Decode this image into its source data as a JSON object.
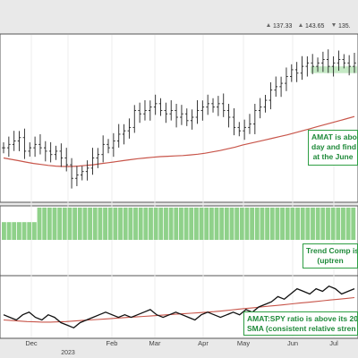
{
  "readouts": [
    {
      "icon": "up-arrow-icon",
      "value": "137.33"
    },
    {
      "icon": "up-arrow-icon",
      "value": "143.65"
    },
    {
      "icon": "down-arrow-icon",
      "value": "135."
    }
  ],
  "x_axis": {
    "months": [
      "Dec",
      "2023",
      "Feb",
      "Mar",
      "Apr",
      "May",
      "Jun",
      "Jul"
    ],
    "year": "2023"
  },
  "annotations": {
    "price_note": [
      "AMAT is abo",
      "day and find",
      "at the June"
    ],
    "trend_note": [
      "Trend Comp is",
      "(uptren"
    ],
    "ratio_note": [
      "AMAT:SPY ratio is above its 20",
      "SMA (consistent relative stren"
    ]
  },
  "colors": {
    "price_bars": "#222222",
    "sma": "#c8554a",
    "trend_bars": "#8fd18a",
    "support_band": "#bfe7bf",
    "ratio_line": "#111111",
    "annotation": "#2f9e44",
    "panel_bg": "#ffffff",
    "page_bg": "#e9e9e9"
  },
  "chart_data": [
    {
      "type": "ohlc",
      "title": "",
      "series": [
        {
          "kind": "price",
          "close": [
            115,
            116,
            117,
            118,
            114,
            115,
            116,
            115,
            114,
            113,
            114,
            112,
            110,
            106,
            107,
            108,
            109,
            112,
            113,
            116,
            115,
            117,
            119,
            120,
            121,
            126,
            125,
            126,
            127,
            128,
            126,
            125,
            126,
            124,
            125,
            123,
            124,
            126,
            127,
            128,
            127,
            128,
            126,
            124,
            121,
            120,
            121,
            122,
            126,
            127,
            129,
            132,
            133,
            134,
            136,
            138,
            137,
            139,
            140,
            139,
            140,
            141,
            139,
            140,
            141,
            140,
            139,
            140
          ]
        },
        {
          "kind": "sma",
          "values": [
            112,
            111.6,
            111.2,
            110.8,
            110.4,
            110.1,
            109.8,
            109.6,
            109.5,
            109.5,
            109.6,
            109.8,
            110,
            110.3,
            110.6,
            110.9,
            111.2,
            111.5,
            111.8,
            112,
            112.2,
            112.4,
            112.5,
            112.6,
            112.7,
            112.9,
            113.1,
            113.4,
            113.8,
            114.2,
            114.7,
            115.2,
            115.8,
            116.3,
            116.8,
            117.3,
            117.8,
            118.3,
            118.8,
            119.4,
            120,
            120.6,
            121.2,
            121.8,
            122.4,
            123,
            123.6,
            124.2
          ]
        }
      ],
      "support_band": [
        137,
        139
      ]
    },
    {
      "type": "bar",
      "title": "",
      "series": [
        {
          "name": "",
          "values": [
            1,
            1,
            1,
            1,
            1,
            1,
            1,
            1,
            1,
            1,
            1,
            1,
            1,
            1,
            1,
            1,
            1,
            1,
            1,
            1,
            1,
            1,
            1,
            1,
            1,
            1,
            1,
            1,
            1,
            1,
            1,
            1,
            1,
            1,
            1,
            1,
            1,
            1,
            1,
            1,
            1,
            1,
            1,
            1,
            1,
            1,
            1,
            1,
            1,
            1,
            1,
            1,
            1,
            1,
            1,
            1,
            1,
            1,
            1,
            1,
            1,
            1,
            1,
            1,
            1,
            1,
            1,
            1,
            1,
            1
          ]
        }
      ],
      "values_early_level": 0.55
    },
    {
      "type": "line",
      "title": "",
      "series": [
        {
          "kind": "ratio",
          "values": [
            0.86,
            0.85,
            0.84,
            0.86,
            0.87,
            0.85,
            0.84,
            0.86,
            0.85,
            0.83,
            0.82,
            0.81,
            0.83,
            0.84,
            0.85,
            0.86,
            0.87,
            0.86,
            0.85,
            0.86,
            0.85,
            0.86,
            0.87,
            0.88,
            0.86,
            0.85,
            0.86,
            0.87,
            0.86,
            0.85,
            0.84,
            0.86,
            0.87,
            0.86,
            0.85,
            0.86,
            0.87,
            0.86,
            0.88,
            0.87,
            0.89,
            0.9,
            0.91,
            0.93,
            0.92,
            0.94,
            0.96,
            0.95,
            0.94,
            0.96,
            0.95,
            0.97,
            0.96,
            0.94,
            0.95,
            0.96
          ]
        },
        {
          "kind": "sma",
          "values": [
            0.84,
            0.838,
            0.836,
            0.834,
            0.833,
            0.832,
            0.832,
            0.833,
            0.834,
            0.836,
            0.838,
            0.84,
            0.842,
            0.844,
            0.846,
            0.848,
            0.85,
            0.852,
            0.854,
            0.856,
            0.858,
            0.86,
            0.862,
            0.864,
            0.866,
            0.868,
            0.87,
            0.872,
            0.875,
            0.878,
            0.881,
            0.884,
            0.887,
            0.89,
            0.893,
            0.896,
            0.899,
            0.902,
            0.905,
            0.908,
            0.911,
            0.914,
            0.917,
            0.92,
            0.923,
            0.926
          ]
        }
      ]
    }
  ]
}
